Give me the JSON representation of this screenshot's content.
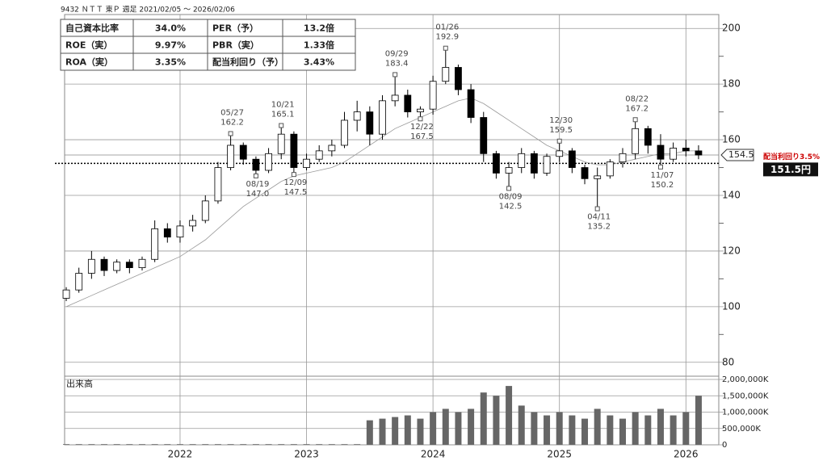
{
  "header": {
    "title": "9432 ＮＴＴ 東Ｐ 週足 2021/02/05 〜 2026/02/06"
  },
  "table": {
    "rows": [
      [
        "自己資本比率",
        "34.0%",
        "PER（予）",
        "13.2倍"
      ],
      [
        "ROE（実）",
        "9.97%",
        "PBR（実）",
        "1.33倍"
      ],
      [
        "ROA（実）",
        "3.35%",
        "配当利回り（予）",
        "3.43%"
      ]
    ]
  },
  "chart_data": {
    "type": "candlestick",
    "x": [
      2021.1,
      2021.2,
      2021.3,
      2021.4,
      2021.5,
      2021.6,
      2021.7,
      2021.8,
      2021.9,
      2022.0,
      2022.1,
      2022.2,
      2022.3,
      2022.4,
      2022.5,
      2022.6,
      2022.7,
      2022.8,
      2022.9,
      2023.0,
      2023.1,
      2023.2,
      2023.3,
      2023.4,
      2023.5,
      2023.6,
      2023.7,
      2023.8,
      2023.9,
      2024.0,
      2024.1,
      2024.2,
      2024.3,
      2024.4,
      2024.5,
      2024.6,
      2024.7,
      2024.8,
      2024.9,
      2025.0,
      2025.1,
      2025.2,
      2025.3,
      2025.4,
      2025.5,
      2025.6,
      2025.7,
      2025.8,
      2025.9,
      2026.0,
      2026.1
    ],
    "open": [
      103,
      106,
      112,
      117,
      113,
      116,
      114,
      117,
      128,
      125,
      129,
      131,
      138,
      150,
      158,
      153,
      149,
      155,
      162,
      150,
      153,
      156,
      158,
      167,
      170,
      162,
      174,
      176,
      170,
      171,
      181,
      186,
      178,
      168,
      155,
      148,
      150,
      155,
      148,
      154,
      156,
      150,
      146,
      147,
      152,
      155,
      164,
      158,
      153,
      157,
      156
    ],
    "high": [
      107,
      114,
      120,
      118,
      117,
      117,
      118,
      131,
      130,
      131,
      133,
      140,
      152,
      162.2,
      159,
      154,
      157,
      165.1,
      163,
      155,
      158,
      160,
      170,
      174,
      172,
      176,
      183.4,
      178,
      172,
      183,
      192.9,
      187,
      180,
      170,
      156,
      152,
      157,
      156,
      155,
      159.5,
      157,
      151,
      150,
      153,
      157,
      167.2,
      165,
      162,
      159,
      160,
      158
    ],
    "low": [
      102,
      105,
      110,
      111,
      112,
      112,
      113,
      116,
      123,
      123,
      127,
      130,
      137,
      149,
      151,
      147,
      148,
      153,
      147.5,
      149,
      152,
      154,
      157,
      163,
      158,
      160,
      172,
      168,
      167.5,
      169,
      180,
      176,
      166,
      152,
      146,
      142.5,
      148,
      146,
      147,
      152,
      148,
      144,
      135.2,
      146,
      150,
      153,
      155,
      150.2,
      152,
      154,
      153
    ],
    "close": [
      106,
      112,
      117,
      113,
      116,
      114,
      117,
      128,
      125,
      129,
      131,
      138,
      150,
      158,
      153,
      149,
      155,
      162,
      150,
      153,
      156,
      158,
      167,
      170,
      162,
      174,
      176,
      170,
      171,
      181,
      186,
      178,
      168,
      155,
      148,
      150,
      155,
      148,
      154,
      156,
      150,
      146,
      147,
      152,
      155,
      164,
      158,
      153,
      157,
      156,
      154.5
    ],
    "volume": [
      20000,
      20000,
      20000,
      20000,
      20000,
      20000,
      20000,
      20000,
      20000,
      20000,
      20000,
      20000,
      20000,
      20000,
      20000,
      20000,
      20000,
      20000,
      20000,
      20000,
      20000,
      20000,
      20000,
      20000,
      750000,
      800000,
      850000,
      900000,
      800000,
      1000000,
      1100000,
      1000000,
      1100000,
      1600000,
      1500000,
      1800000,
      1200000,
      1000000,
      900000,
      1000000,
      900000,
      800000,
      1100000,
      900000,
      800000,
      1000000,
      900000,
      1100000,
      900000,
      1000000,
      1500000
    ],
    "ma": [
      100,
      102,
      104,
      106,
      108,
      110,
      112,
      114,
      116,
      118,
      121,
      124,
      128,
      132,
      136,
      139,
      142,
      145,
      147,
      148,
      149,
      150,
      152,
      155,
      158,
      161,
      164,
      166,
      168,
      170,
      172,
      174,
      175,
      173,
      170,
      167,
      164,
      161,
      158,
      156,
      154,
      152,
      151,
      151,
      152,
      153,
      154,
      155,
      155,
      156,
      156
    ],
    "xlim": [
      2021.087,
      2026.26
    ],
    "xticks": [
      2022,
      2023,
      2024,
      2025,
      2026
    ],
    "ylim": [
      75,
      205
    ],
    "yticks": [
      200,
      180,
      160,
      140,
      120,
      100,
      80
    ],
    "yminor": [
      190,
      170,
      150,
      130,
      110,
      90
    ],
    "volume_label": "出来高",
    "vlim": [
      0,
      2000000
    ],
    "vticks": [
      {
        "value": 2000000,
        "label": "2,000,000K"
      },
      {
        "value": 1500000,
        "label": "1,500,000K"
      },
      {
        "value": 1000000,
        "label": "1,000,000K"
      },
      {
        "value": 500000,
        "label": "500,000K"
      },
      0
    ],
    "last_price": 154.5,
    "dividend_line": {
      "label": "配当利回り3.5%",
      "value": 151.5,
      "value_label": "151.5円"
    },
    "annotations": [
      {
        "date": "05/27",
        "value": 162.2,
        "x": 2022.4,
        "position": "above"
      },
      {
        "date": "08/19",
        "value": 147,
        "value_label": "147.0",
        "x": 2022.6,
        "position": "below"
      },
      {
        "date": "10/21",
        "value": 165.1,
        "x": 2022.8,
        "position": "above"
      },
      {
        "date": "12/09",
        "value": 147.5,
        "x": 2022.9,
        "position": "below"
      },
      {
        "date": "09/29",
        "value": 183.4,
        "x": 2023.7,
        "position": "above"
      },
      {
        "date": "12/22",
        "value": 167.5,
        "x": 2023.9,
        "position": "below"
      },
      {
        "date": "01/26",
        "value": 192.9,
        "x": 2024.1,
        "position": "above"
      },
      {
        "date": "08/09",
        "value": 142.5,
        "x": 2024.6,
        "position": "below"
      },
      {
        "date": "12/30",
        "value": 159.5,
        "x": 2025.0,
        "position": "above"
      },
      {
        "date": "04/11",
        "value": 135.2,
        "x": 2025.3,
        "position": "below"
      },
      {
        "date": "08/22",
        "value": 167.2,
        "x": 2025.6,
        "position": "above"
      },
      {
        "date": "11/07",
        "value": 150.2,
        "x": 2025.8,
        "position": "below"
      }
    ]
  }
}
